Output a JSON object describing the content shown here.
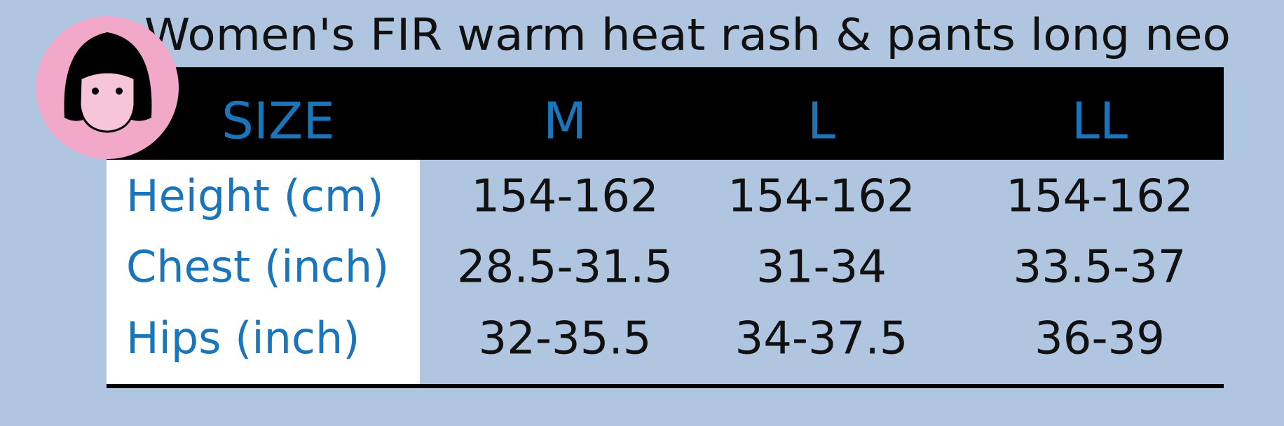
{
  "title": "Women's FIR warm heat rash & pants long neo",
  "table": {
    "header": [
      "SIZE",
      "M",
      "L",
      "LL"
    ],
    "rows": [
      [
        "Height (cm)",
        "154-162",
        "154-162",
        "154-162"
      ],
      [
        "Chest (inch)",
        "28.5-31.5",
        "31-34",
        "33.5-37"
      ],
      [
        "Hips (inch)",
        "32-35.5",
        "34-37.5",
        "36-39"
      ]
    ]
  }
}
